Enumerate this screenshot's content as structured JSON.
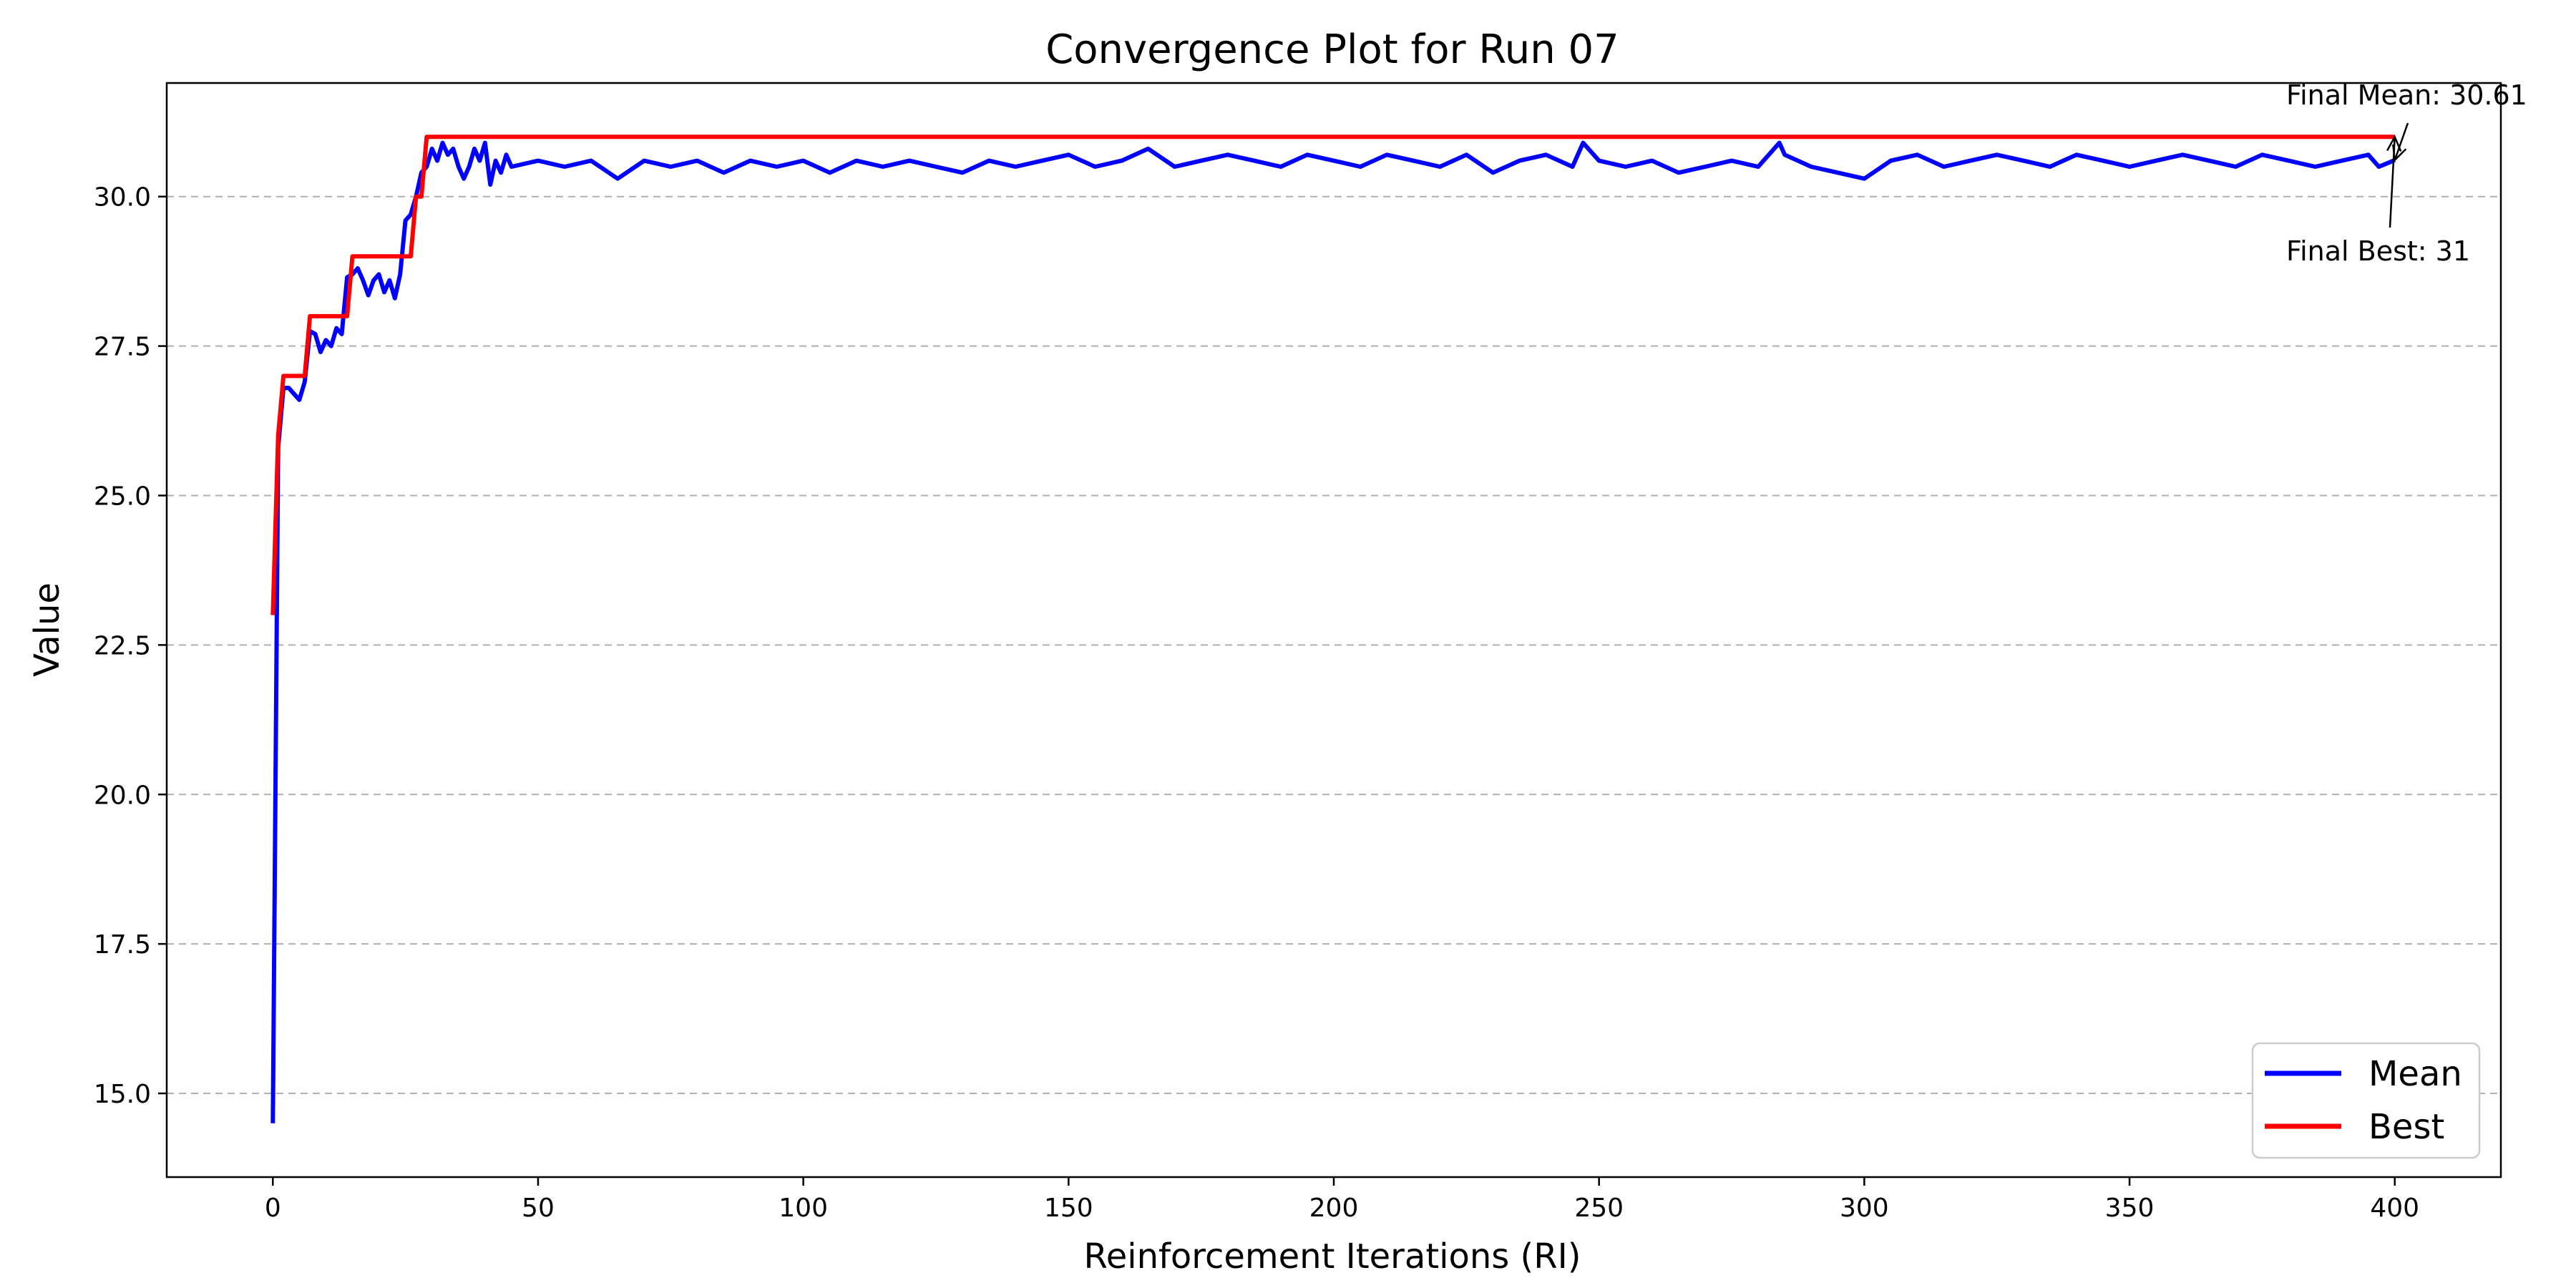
{
  "chart_data": {
    "type": "line",
    "title": "Convergence Plot for Run 07",
    "xlabel": "Reinforcement Iterations (RI)",
    "ylabel": "Value",
    "xlim": [
      -20,
      420
    ],
    "ylim": [
      13.6,
      31.9
    ],
    "x_ticks": [
      0,
      50,
      100,
      150,
      200,
      250,
      300,
      350,
      400
    ],
    "y_ticks": [
      15.0,
      17.5,
      20.0,
      22.5,
      25.0,
      27.5,
      30.0
    ],
    "y_tick_labels": [
      "15.0",
      "17.5",
      "20.0",
      "22.5",
      "25.0",
      "27.5",
      "30.0"
    ],
    "grid": "y-dashed",
    "legend_position": "lower-right",
    "series": [
      {
        "name": "Mean",
        "color": "#0000ff",
        "x": [
          0,
          1,
          2,
          3,
          4,
          5,
          6,
          7,
          8,
          9,
          10,
          11,
          12,
          13,
          14,
          15,
          16,
          17,
          18,
          19,
          20,
          21,
          22,
          23,
          24,
          25,
          26,
          27,
          28,
          29,
          30,
          31,
          32,
          33,
          34,
          35,
          36,
          37,
          38,
          39,
          40,
          41,
          42,
          43,
          44,
          45,
          50,
          55,
          60,
          65,
          70,
          75,
          80,
          85,
          90,
          95,
          100,
          105,
          110,
          115,
          120,
          125,
          130,
          135,
          140,
          145,
          150,
          155,
          160,
          165,
          170,
          175,
          180,
          185,
          190,
          195,
          200,
          205,
          210,
          215,
          220,
          225,
          230,
          235,
          240,
          245,
          247,
          250,
          255,
          260,
          265,
          270,
          275,
          280,
          284,
          285,
          290,
          295,
          300,
          305,
          310,
          315,
          320,
          325,
          330,
          335,
          340,
          345,
          350,
          355,
          360,
          365,
          370,
          375,
          380,
          385,
          390,
          395,
          397,
          400
        ],
        "values": [
          14.5,
          25.8,
          26.8,
          26.8,
          26.7,
          26.6,
          26.9,
          27.75,
          27.7,
          27.4,
          27.6,
          27.5,
          27.8,
          27.7,
          28.65,
          28.7,
          28.8,
          28.6,
          28.35,
          28.6,
          28.7,
          28.4,
          28.6,
          28.3,
          28.7,
          29.6,
          29.7,
          30.0,
          30.4,
          30.5,
          30.8,
          30.6,
          30.9,
          30.7,
          30.8,
          30.5,
          30.3,
          30.5,
          30.8,
          30.6,
          30.9,
          30.2,
          30.6,
          30.4,
          30.7,
          30.5,
          30.6,
          30.5,
          30.6,
          30.3,
          30.6,
          30.5,
          30.6,
          30.4,
          30.6,
          30.5,
          30.6,
          30.4,
          30.6,
          30.5,
          30.6,
          30.5,
          30.4,
          30.6,
          30.5,
          30.6,
          30.7,
          30.5,
          30.6,
          30.8,
          30.5,
          30.6,
          30.7,
          30.6,
          30.5,
          30.7,
          30.6,
          30.5,
          30.7,
          30.6,
          30.5,
          30.7,
          30.4,
          30.6,
          30.7,
          30.5,
          30.9,
          30.6,
          30.5,
          30.6,
          30.4,
          30.5,
          30.6,
          30.5,
          30.9,
          30.7,
          30.5,
          30.4,
          30.3,
          30.6,
          30.7,
          30.5,
          30.6,
          30.7,
          30.6,
          30.5,
          30.7,
          30.6,
          30.5,
          30.6,
          30.7,
          30.6,
          30.5,
          30.7,
          30.6,
          30.5,
          30.6,
          30.7,
          30.5,
          30.61
        ]
      },
      {
        "name": "Best",
        "color": "#ff0000",
        "x": [
          0,
          1,
          2,
          6,
          7,
          14,
          15,
          26,
          27,
          28,
          29,
          400
        ],
        "values": [
          23,
          26,
          27,
          27,
          28,
          28,
          29,
          29,
          30,
          30,
          31,
          31
        ]
      }
    ],
    "annotations": [
      {
        "text": "Final Mean: 30.61",
        "x": 400,
        "y": 30.61
      },
      {
        "text": "Final Best: 31",
        "x": 400,
        "y": 31
      }
    ]
  }
}
